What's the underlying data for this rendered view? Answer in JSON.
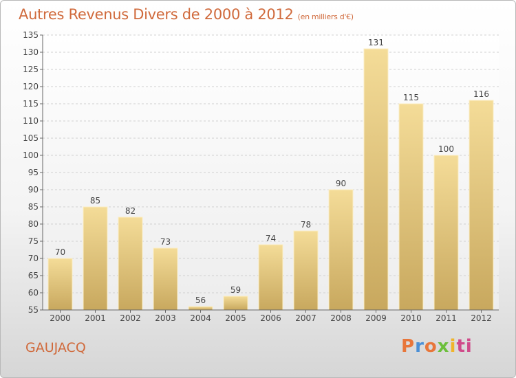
{
  "chart_data": {
    "type": "bar",
    "title": "Autres Revenus Divers de 2000 à 2012",
    "unit_note": "(en milliers d'€)",
    "categories": [
      "2000",
      "2001",
      "2002",
      "2003",
      "2004",
      "2005",
      "2006",
      "2007",
      "2008",
      "2009",
      "2010",
      "2011",
      "2012"
    ],
    "values": [
      70,
      85,
      82,
      73,
      56,
      59,
      74,
      78,
      90,
      131,
      115,
      100,
      116
    ],
    "ylim": [
      55,
      135
    ],
    "yticks": [
      55,
      60,
      65,
      70,
      75,
      80,
      85,
      90,
      95,
      100,
      105,
      110,
      115,
      120,
      125,
      130,
      135
    ],
    "grid": true,
    "bar_color_top": "#f4dc98",
    "bar_color_bottom": "#c8a85e"
  },
  "location_label": "GAUJACQ",
  "logo": {
    "parts": [
      "P",
      "r",
      "o",
      "x",
      "i",
      "ti"
    ]
  }
}
